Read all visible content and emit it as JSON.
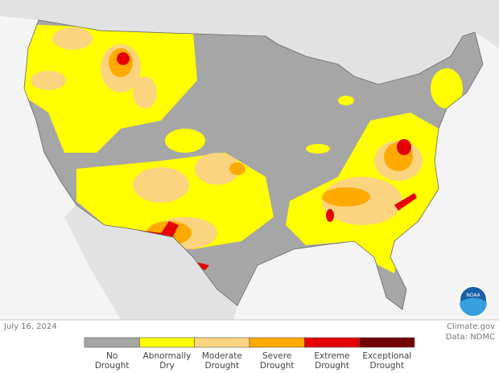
{
  "date": "July 16, 2024",
  "credit": "Climate.gov",
  "source": "Data: NDMC",
  "logo_text": "NOAA",
  "legend": [
    {
      "label": "No Drought",
      "color": "#a6a6a6"
    },
    {
      "label": "Abnormally Dry",
      "color": "#ffff00"
    },
    {
      "label": "Moderate Drought",
      "color": "#fcd37f"
    },
    {
      "label": "Severe Drought",
      "color": "#ffaa00"
    },
    {
      "label": "Extreme Drought",
      "color": "#e60000"
    },
    {
      "label": "Exceptional Drought",
      "color": "#730000"
    }
  ]
}
